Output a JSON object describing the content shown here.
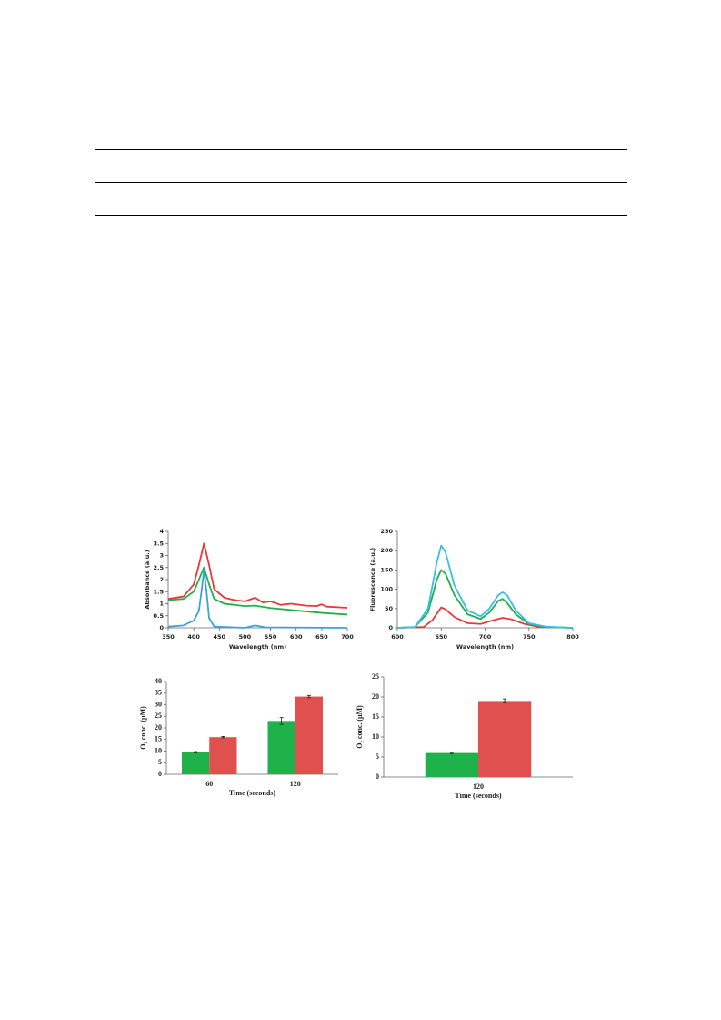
{
  "chart_data": [
    {
      "type": "line",
      "ylabel": "Absorbance (a.u.)",
      "xlabel": "Wavelength (nm)",
      "xlim": [
        350,
        700
      ],
      "xticks": [
        350,
        400,
        450,
        500,
        550,
        600,
        650,
        700
      ],
      "ylim": [
        0,
        4
      ],
      "yticks": [
        0,
        0.5,
        1,
        1.5,
        2,
        2.5,
        3,
        3.5,
        4
      ],
      "series": [
        {
          "color": "#e8383b",
          "x": [
            350,
            380,
            400,
            410,
            420,
            430,
            440,
            460,
            480,
            500,
            520,
            535,
            550,
            570,
            590,
            620,
            640,
            650,
            660,
            700
          ],
          "values": [
            1.2,
            1.3,
            1.8,
            2.6,
            3.5,
            2.6,
            1.6,
            1.25,
            1.15,
            1.1,
            1.25,
            1.05,
            1.1,
            0.95,
            1.0,
            0.92,
            0.9,
            0.97,
            0.88,
            0.83
          ]
        },
        {
          "color": "#22b04b",
          "x": [
            350,
            380,
            400,
            410,
            420,
            430,
            440,
            460,
            500,
            520,
            550,
            600,
            650,
            700
          ],
          "values": [
            1.15,
            1.2,
            1.5,
            2.0,
            2.5,
            1.8,
            1.2,
            1.0,
            0.9,
            0.92,
            0.82,
            0.72,
            0.62,
            0.55
          ]
        },
        {
          "color": "#3aa3dc",
          "x": [
            350,
            380,
            400,
            410,
            415,
            420,
            425,
            430,
            440,
            500,
            520,
            540,
            700
          ],
          "values": [
            0.05,
            0.1,
            0.3,
            0.7,
            1.5,
            2.4,
            1.5,
            0.4,
            0.05,
            0,
            0.1,
            0.02,
            0
          ]
        }
      ]
    },
    {
      "type": "line",
      "ylabel": "Fluorescence (a.u.)",
      "xlabel": "Wavelength (nm)",
      "xlim": [
        600,
        800
      ],
      "xticks": [
        600,
        650,
        700,
        750,
        800
      ],
      "ylim": [
        0,
        250
      ],
      "yticks": [
        0,
        50,
        100,
        150,
        200,
        250
      ],
      "series": [
        {
          "color": "#e8383b",
          "x": [
            600,
            630,
            640,
            650,
            655,
            665,
            680,
            695,
            710,
            720,
            730,
            745,
            760,
            800
          ],
          "values": [
            0,
            2,
            20,
            53,
            48,
            28,
            12,
            10,
            20,
            26,
            22,
            10,
            3,
            0
          ]
        },
        {
          "color": "#22b04b",
          "x": [
            600,
            620,
            635,
            645,
            650,
            655,
            665,
            680,
            695,
            705,
            715,
            720,
            725,
            735,
            750,
            770,
            800
          ],
          "values": [
            0,
            2,
            40,
            125,
            150,
            140,
            85,
            35,
            23,
            40,
            70,
            75,
            65,
            35,
            10,
            2,
            0
          ]
        },
        {
          "color": "#33c1e8",
          "x": [
            600,
            620,
            635,
            645,
            650,
            655,
            665,
            680,
            695,
            705,
            715,
            720,
            725,
            735,
            750,
            770,
            800
          ],
          "values": [
            0,
            2,
            50,
            170,
            213,
            195,
            110,
            45,
            30,
            50,
            85,
            92,
            85,
            45,
            12,
            3,
            0
          ]
        }
      ]
    },
    {
      "type": "bar",
      "ylabel": "O₂ conc. (μM)",
      "xlabel": "Time (seconds)",
      "categories": [
        "60",
        "120"
      ],
      "ylim": [
        0,
        40
      ],
      "yticks": [
        0,
        5,
        10,
        15,
        20,
        25,
        30,
        35,
        40
      ],
      "series": [
        {
          "color": "#1fb24a",
          "values": [
            9.5,
            23
          ],
          "errors": [
            0.3,
            1.5
          ]
        },
        {
          "color": "#e0504f",
          "values": [
            16,
            33.5
          ],
          "errors": [
            0.3,
            0.5
          ]
        }
      ]
    },
    {
      "type": "bar",
      "ylabel": "O₂ conc. (μM)",
      "xlabel": "Time (seconds)",
      "categories": [
        "120"
      ],
      "ylim": [
        0,
        25
      ],
      "yticks": [
        0,
        5,
        10,
        15,
        20,
        25
      ],
      "series": [
        {
          "color": "#1fb24a",
          "values": [
            6
          ],
          "errors": [
            0.15
          ]
        },
        {
          "color": "#e0504f",
          "values": [
            19
          ],
          "errors": [
            0.5
          ]
        }
      ]
    }
  ]
}
